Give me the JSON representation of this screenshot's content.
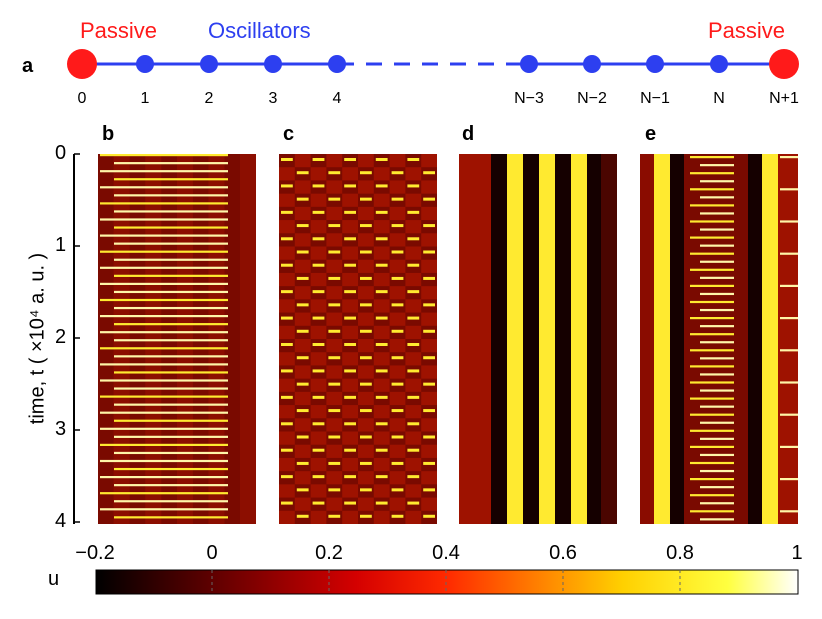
{
  "chain": {
    "letter": "a",
    "passive_left_label": "Passive",
    "passive_right_label": "Passive",
    "oscillators_label": "Oscillators",
    "node_labels_left": [
      "0",
      "1",
      "2",
      "3",
      "4"
    ],
    "node_labels_right": [
      "N−3",
      "N−2",
      "N−1",
      "N",
      "N+1"
    ],
    "passive_color": "#ff1a1a",
    "oscillator_color": "#2d3ff0"
  },
  "chart_data": [
    {
      "type": "heatmap",
      "panel": "b",
      "pattern": "row-stripes",
      "note_values": "u"
    },
    {
      "type": "heatmap",
      "panel": "c",
      "pattern": "checkerboard"
    },
    {
      "type": "heatmap",
      "panel": "d",
      "pattern": "vertical-stripes"
    },
    {
      "type": "heatmap",
      "panel": "e",
      "pattern": "mixed-stripes"
    }
  ],
  "axes": {
    "ylabel": "time, t  ( ×10⁴ a. u. )",
    "yticks": [
      "0",
      "1",
      "2",
      "3",
      "4"
    ],
    "ylim": [
      0,
      4
    ]
  },
  "colorbar": {
    "label": "u",
    "ticks": [
      "−0.2",
      "0",
      "0.2",
      "0.4",
      "0.6",
      "0.8",
      "1"
    ],
    "range": [
      -0.2,
      1
    ],
    "colormap": "hot"
  },
  "panel_letters": [
    "b",
    "c",
    "d",
    "e"
  ]
}
